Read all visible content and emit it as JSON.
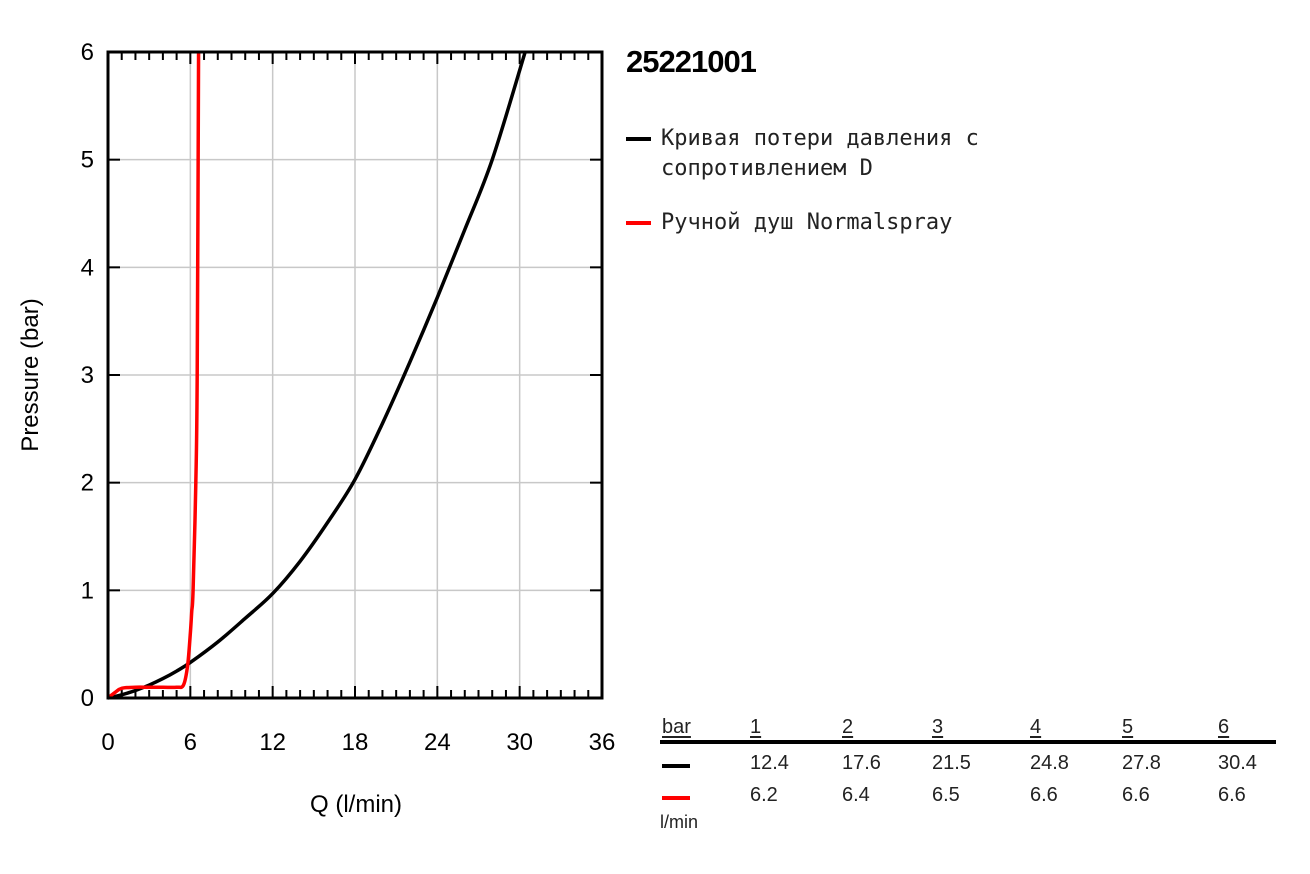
{
  "chart_data": {
    "type": "line",
    "title": "25221001",
    "xlabel": "Q (l/min)",
    "ylabel": "Pressure (bar)",
    "xlim": [
      0,
      36
    ],
    "ylim": [
      0,
      6
    ],
    "xticks": [
      "0",
      "6",
      "12",
      "18",
      "24",
      "30",
      "36"
    ],
    "yticks": [
      "0",
      "1",
      "2",
      "3",
      "4",
      "5",
      "6"
    ],
    "grid": true,
    "legend_position": "right",
    "series": [
      {
        "name": "Кривая потери давления с сопротивлением D",
        "color": "#000000",
        "x": [
          0,
          1,
          2,
          3,
          4,
          5,
          6,
          8,
          10,
          12,
          14,
          16,
          18,
          20,
          22,
          24,
          26,
          28,
          30.4
        ],
        "y": [
          0,
          0.03,
          0.07,
          0.12,
          0.18,
          0.25,
          0.33,
          0.52,
          0.74,
          0.97,
          1.27,
          1.63,
          2.03,
          2.55,
          3.12,
          3.72,
          4.35,
          5.0,
          6.0
        ]
      },
      {
        "name": "Ручной душ Normalspray",
        "color": "#ff0000",
        "x": [
          0,
          0.5,
          1,
          2,
          3,
          4,
          5,
          5.5,
          5.8,
          6.0,
          6.1,
          6.2,
          6.4,
          6.5,
          6.6
        ],
        "y": [
          0,
          0.05,
          0.09,
          0.1,
          0.1,
          0.1,
          0.1,
          0.12,
          0.3,
          0.6,
          0.8,
          1.0,
          2.0,
          3.0,
          6.0
        ]
      }
    ]
  },
  "value_table": {
    "header_label": "bar",
    "pressures": [
      "1",
      "2",
      "3",
      "4",
      "5",
      "6"
    ],
    "rows": [
      {
        "color": "#000000",
        "values": [
          "12.4",
          "17.6",
          "21.5",
          "24.8",
          "27.8",
          "30.4"
        ]
      },
      {
        "color": "#ff0000",
        "values": [
          "6.2",
          "6.4",
          "6.5",
          "6.6",
          "6.6",
          "6.6"
        ]
      }
    ],
    "unit": "l/min"
  }
}
